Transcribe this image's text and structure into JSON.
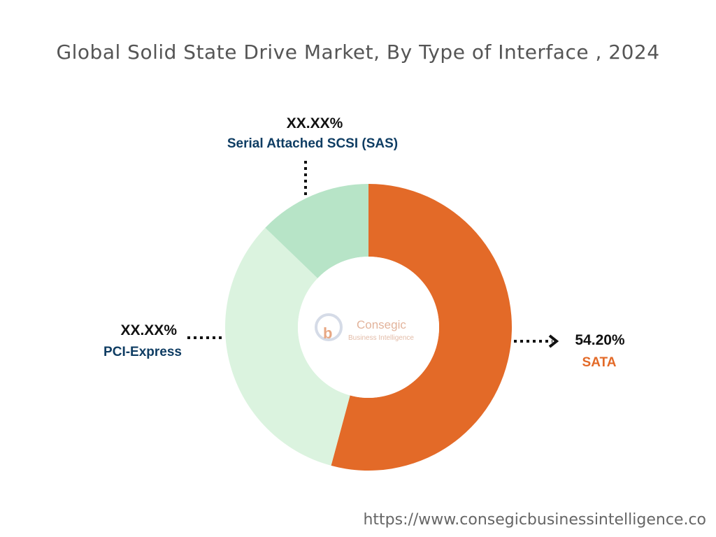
{
  "chart_data": {
    "type": "pie",
    "title": "Global Solid State Drive Market, By Type of Interface , 2024",
    "slices": [
      {
        "name": "SATA",
        "value": 54.2,
        "label": "54.20%",
        "color": "#e36a28",
        "label_color": "#e36a28"
      },
      {
        "name": "PCI-Express",
        "value": 33.0,
        "label": "XX.XX%",
        "color": "#dbf3df",
        "label_color": "#0f3d63"
      },
      {
        "name": "Serial Attached SCSI (SAS)",
        "value": 12.8,
        "label": "XX.XX%",
        "color": "#b7e4c7",
        "label_color": "#0f3d63"
      }
    ],
    "legend": "none"
  },
  "logo": {
    "name": "Consegic",
    "subtitle": "Business Intelligence"
  },
  "footer": {
    "url": "https://www.consegicbusinessintelligence.co"
  }
}
